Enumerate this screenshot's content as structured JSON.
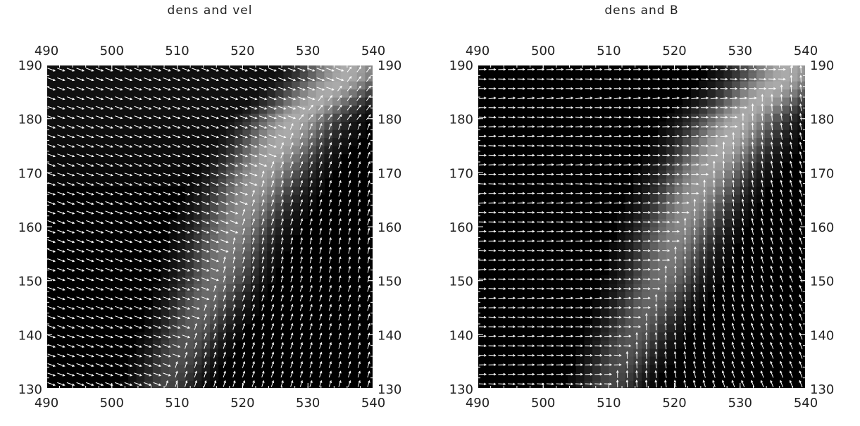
{
  "chart_data": [
    {
      "type": "heatmap",
      "subtype": "grayscale density image with overlaid vector field",
      "title": "dens and vel",
      "xlabel": "",
      "ylabel": "",
      "xlim": [
        490,
        540
      ],
      "ylim": [
        130,
        190
      ],
      "xticks": [
        490,
        500,
        510,
        520,
        530,
        540
      ],
      "yticks": [
        130,
        140,
        150,
        160,
        170,
        180,
        190
      ],
      "axes": "ticks and labels on all four sides",
      "grid": false,
      "legend": "none",
      "colormap": "grayscale (black = low density, white = high)",
      "density_ridge": [
        [
          508,
          130
        ],
        [
          512,
          140
        ],
        [
          516,
          150
        ],
        [
          519,
          160
        ],
        [
          523,
          170
        ],
        [
          528,
          180
        ],
        [
          536,
          188
        ]
      ],
      "vector_field": {
        "left_of_ridge": "arrows pointing right and slightly downward (toward the ridge)",
        "right_of_ridge": "arrows pointing up and to the right, parallel to the ridge"
      },
      "arrow_color": "#ffffff"
    },
    {
      "type": "heatmap",
      "subtype": "grayscale density image with overlaid vector field",
      "title": "dens and B",
      "xlabel": "",
      "ylabel": "",
      "xlim": [
        490,
        540
      ],
      "ylim": [
        130,
        190
      ],
      "xticks": [
        490,
        500,
        510,
        520,
        530,
        540
      ],
      "yticks": [
        130,
        140,
        150,
        160,
        170,
        180,
        190
      ],
      "axes": "ticks and labels on all four sides",
      "grid": false,
      "legend": "none",
      "colormap": "grayscale (black = low density, white = high)",
      "density_ridge": [
        [
          510,
          130
        ],
        [
          514,
          140
        ],
        [
          518,
          150
        ],
        [
          521,
          160
        ],
        [
          525,
          170
        ],
        [
          530,
          180
        ],
        [
          537,
          188
        ]
      ],
      "vector_field": {
        "left_of_ridge": "arrows mostly horizontal, pointing right",
        "right_of_ridge": "arrows vertical, pointing up, tilting toward the ridge"
      },
      "arrow_color": "#ffffff"
    }
  ]
}
